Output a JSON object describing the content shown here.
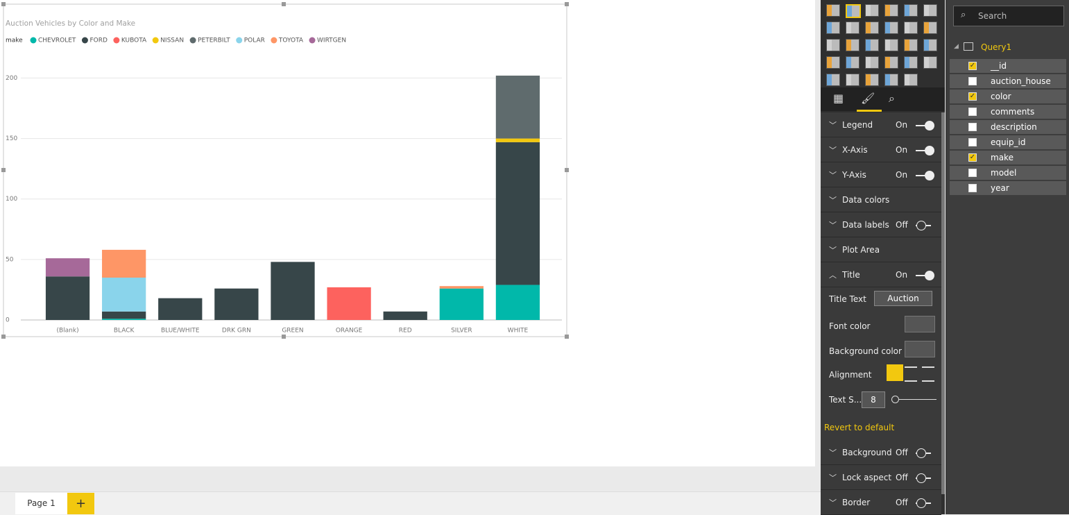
{
  "chart_data": {
    "type": "stacked_bar",
    "title": "Auction Vehicles by Color and Make",
    "legend_title": "make",
    "categories": [
      "(Blank)",
      "BLACK",
      "BLUE/WHITE",
      "DRK GRN",
      "GREEN",
      "ORANGE",
      "RED",
      "SILVER",
      "WHITE"
    ],
    "series": [
      {
        "name": "CHEVROLET",
        "color": "#01B8AA",
        "values": [
          null,
          1,
          null,
          null,
          null,
          null,
          null,
          26,
          29
        ]
      },
      {
        "name": "FORD",
        "color": "#374649",
        "values": [
          36,
          6,
          18,
          26,
          48,
          null,
          7,
          null,
          118
        ]
      },
      {
        "name": "KUBOTA",
        "color": "#FD625E",
        "values": [
          null,
          null,
          null,
          null,
          null,
          27,
          null,
          null,
          null
        ]
      },
      {
        "name": "NISSAN",
        "color": "#F2C80F",
        "values": [
          null,
          null,
          null,
          null,
          null,
          null,
          null,
          null,
          3
        ]
      },
      {
        "name": "PETERBILT",
        "color": "#5F6B6D",
        "values": [
          null,
          null,
          null,
          null,
          null,
          null,
          null,
          null,
          52
        ]
      },
      {
        "name": "POLAR",
        "color": "#8AD4EB",
        "values": [
          null,
          28,
          null,
          null,
          null,
          null,
          null,
          null,
          null
        ]
      },
      {
        "name": "TOYOTA",
        "color": "#FE9666",
        "values": [
          null,
          23,
          null,
          null,
          null,
          null,
          null,
          2,
          null
        ]
      },
      {
        "name": "WIRTGEN",
        "color": "#A66999",
        "values": [
          15,
          null,
          null,
          null,
          null,
          null,
          null,
          null,
          null
        ]
      }
    ],
    "ylim": [
      0,
      210
    ],
    "yticks": [
      0,
      50,
      100,
      150,
      200
    ],
    "grid": true,
    "legend": "top-left"
  },
  "format_pane": {
    "sections": [
      {
        "label": "Legend",
        "state": "On"
      },
      {
        "label": "X-Axis",
        "state": "On"
      },
      {
        "label": "Y-Axis",
        "state": "On"
      },
      {
        "label": "Data colors"
      },
      {
        "label": "Data labels",
        "state": "Off"
      },
      {
        "label": "Plot Area"
      },
      {
        "label": "Title",
        "state": "On"
      }
    ],
    "title_text": {
      "label": "Title Text",
      "value": "Auction Vehic..."
    },
    "font_color": "Font color",
    "background_color": "Background color",
    "alignment": "Alignment",
    "text_size": {
      "label": "Text S...",
      "value": 8
    },
    "revert": "Revert to default",
    "more_sections": [
      {
        "label": "Background",
        "state": "Off"
      },
      {
        "label": "Lock aspect",
        "state": "Off"
      },
      {
        "label": "Border",
        "state": "Off"
      }
    ]
  },
  "fields_pane": {
    "search": "Search",
    "table": "Query1",
    "fields": [
      {
        "name": "__id",
        "checked": true
      },
      {
        "name": "auction_house",
        "checked": false
      },
      {
        "name": "color",
        "checked": true
      },
      {
        "name": "comments",
        "checked": false
      },
      {
        "name": "description",
        "checked": false
      },
      {
        "name": "equip_id",
        "checked": false
      },
      {
        "name": "make",
        "checked": true
      },
      {
        "name": "model",
        "checked": false
      },
      {
        "name": "year",
        "checked": false
      }
    ]
  },
  "pages": {
    "tabs": [
      "Page 1"
    ]
  }
}
